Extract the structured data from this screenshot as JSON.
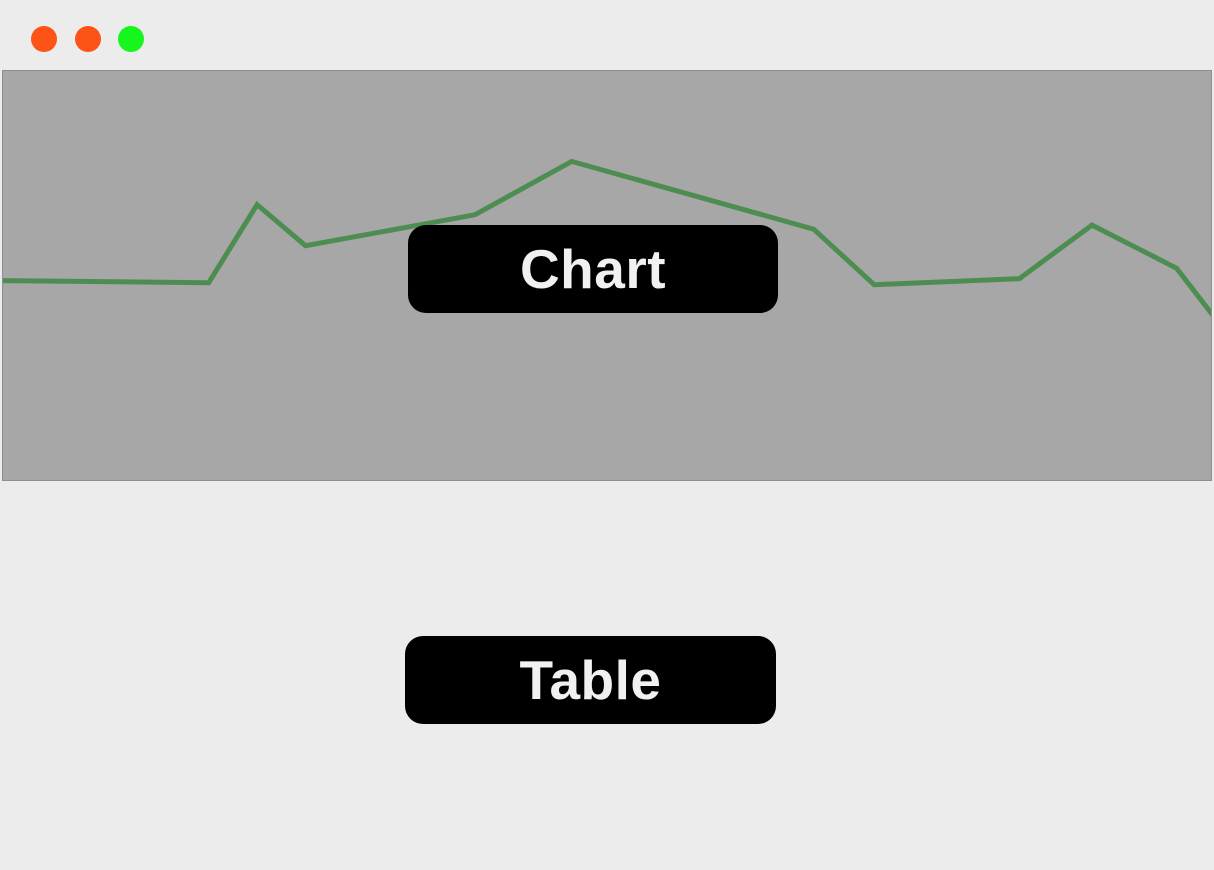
{
  "window": {
    "controls": [
      {
        "name": "close",
        "color": "#fe5316"
      },
      {
        "name": "minimize",
        "color": "#fe5316"
      },
      {
        "name": "zoom",
        "color": "#16f51c"
      }
    ]
  },
  "colors": {
    "background": "#ececec",
    "chart_background": "#a7a7a7",
    "line": "#4e8d52",
    "button_background": "#000000",
    "button_text": "#f1f1f1"
  },
  "buttons": {
    "chart_label": "Chart",
    "table_label": "Table"
  },
  "chart_data": {
    "type": "line",
    "x": [
      0,
      17,
      21,
      25,
      39,
      47,
      67,
      72,
      84,
      90,
      97,
      100
    ],
    "y": [
      49,
      48.5,
      67.5,
      57.5,
      65,
      78,
      61.5,
      48,
      49.5,
      62.5,
      52,
      40.5
    ],
    "xlim": [
      0,
      100
    ],
    "ylim": [
      0,
      100
    ],
    "grid": false,
    "legend": "none",
    "xlabel": "",
    "ylabel": "",
    "title": ""
  }
}
